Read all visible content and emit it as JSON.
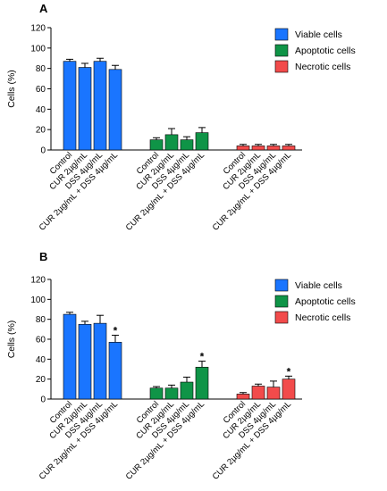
{
  "chart_data": [
    {
      "type": "bar",
      "panel_label": "A",
      "ylabel": "Cells (%)",
      "ylim": [
        0,
        120
      ],
      "yticks": [
        0,
        20,
        40,
        60,
        80,
        100,
        120
      ],
      "categories": [
        "Control",
        "CUR 2µg/mL",
        "DSS 4µg/mL",
        "CUR 2µg/mL + DSS 4µg/mL"
      ],
      "legend_position": "right",
      "series": [
        {
          "name": "Viable cells",
          "color": "#1a75ff",
          "values": [
            87,
            81,
            87,
            79
          ],
          "errors": [
            2,
            4,
            3,
            4
          ],
          "significant": [
            false,
            false,
            false,
            false
          ]
        },
        {
          "name": "Apoptotic cells",
          "color": "#0f9447",
          "values": [
            10,
            15,
            10,
            17
          ],
          "errors": [
            2,
            6,
            3,
            5
          ],
          "significant": [
            false,
            false,
            false,
            false
          ]
        },
        {
          "name": "Necrotic cells",
          "color": "#f24b4b",
          "values": [
            4,
            4,
            4,
            4
          ],
          "errors": [
            1.5,
            1.5,
            1.5,
            1.5
          ],
          "significant": [
            false,
            false,
            false,
            false
          ]
        }
      ]
    },
    {
      "type": "bar",
      "panel_label": "B",
      "ylabel": "Cells (%)",
      "ylim": [
        0,
        120
      ],
      "yticks": [
        0,
        20,
        40,
        60,
        80,
        100,
        120
      ],
      "categories": [
        "Control",
        "CUR 2µg/mL",
        "DSS 4µg/mL",
        "CUR 2µg/mL + DSS 4µg/mL"
      ],
      "legend_position": "right",
      "series": [
        {
          "name": "Viable cells",
          "color": "#1a75ff",
          "values": [
            85,
            75,
            76,
            57
          ],
          "errors": [
            2,
            3,
            8,
            7
          ],
          "significant": [
            false,
            false,
            false,
            true
          ]
        },
        {
          "name": "Apoptotic cells",
          "color": "#0f9447",
          "values": [
            11,
            11,
            17,
            32
          ],
          "errors": [
            1.5,
            3,
            5,
            6
          ],
          "significant": [
            false,
            false,
            false,
            true
          ]
        },
        {
          "name": "Necrotic cells",
          "color": "#f24b4b",
          "values": [
            5,
            13,
            12,
            20
          ],
          "errors": [
            1.5,
            2,
            6,
            3
          ],
          "significant": [
            false,
            false,
            false,
            true
          ]
        }
      ]
    }
  ],
  "significance_marker": "*"
}
